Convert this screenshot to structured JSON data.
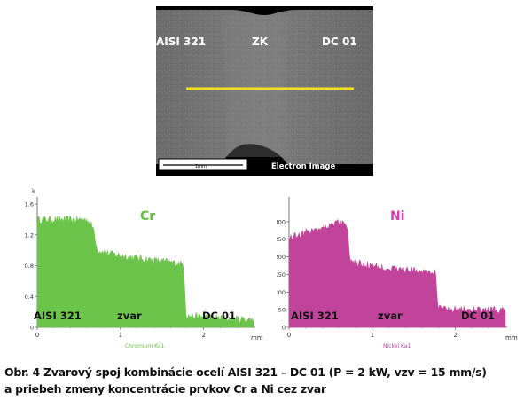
{
  "sem_image": {
    "label_left": "AISI 321",
    "label_center": "ZK",
    "label_right": "DC 01",
    "scale_bar_text": "1mm",
    "footer_label": "Electron Image",
    "line_color": "#f2e21c"
  },
  "chart_data": [
    {
      "type": "area",
      "title": "Cr",
      "color": "#6cc44a",
      "title_color": "#5fbf3c",
      "y_unit_label": "k",
      "xlabel": "Chromium Ka1",
      "x_unit": "mm",
      "xlim": [
        0,
        2.6
      ],
      "ylim": [
        0,
        1.6
      ],
      "yticks": [
        "0",
        "0.4",
        "0.8",
        "1.2",
        "1.6"
      ],
      "xticks": [
        "0",
        "1",
        "2"
      ],
      "ytick_values": [
        0,
        0.4,
        0.8,
        1.2,
        1.6
      ],
      "xtick_values": [
        0,
        1,
        2
      ],
      "profile": [
        {
          "x": 0.0,
          "y": 1.4
        },
        {
          "x": 0.6,
          "y": 1.4
        },
        {
          "x": 0.68,
          "y": 1.28
        },
        {
          "x": 0.72,
          "y": 1.0
        },
        {
          "x": 0.9,
          "y": 0.95
        },
        {
          "x": 1.2,
          "y": 0.9
        },
        {
          "x": 1.5,
          "y": 0.86
        },
        {
          "x": 1.76,
          "y": 0.82
        },
        {
          "x": 1.79,
          "y": 0.15
        },
        {
          "x": 2.2,
          "y": 0.12
        },
        {
          "x": 2.6,
          "y": 0.1
        }
      ],
      "region_labels": [
        "AISI 321",
        "zvar",
        "DC 01"
      ]
    },
    {
      "type": "area",
      "title": "Ni",
      "color": "#c2449a",
      "title_color": "#d63fb0",
      "y_unit_label": "",
      "xlabel": "Nickel Ka1",
      "x_unit": "mm",
      "xlim": [
        0,
        2.6
      ],
      "ylim": [
        0,
        350
      ],
      "yticks": [
        "0",
        "50",
        "100",
        "150",
        "200",
        "250",
        "300"
      ],
      "xticks": [
        "0",
        "1",
        "2"
      ],
      "ytick_values": [
        0,
        50,
        100,
        150,
        200,
        250,
        300
      ],
      "xtick_values": [
        0,
        1,
        2
      ],
      "profile": [
        {
          "x": 0.0,
          "y": 255
        },
        {
          "x": 0.6,
          "y": 300
        },
        {
          "x": 0.7,
          "y": 290
        },
        {
          "x": 0.73,
          "y": 185
        },
        {
          "x": 1.0,
          "y": 175
        },
        {
          "x": 1.3,
          "y": 165
        },
        {
          "x": 1.6,
          "y": 160
        },
        {
          "x": 1.76,
          "y": 155
        },
        {
          "x": 1.79,
          "y": 55
        },
        {
          "x": 2.2,
          "y": 50
        },
        {
          "x": 2.6,
          "y": 48
        }
      ],
      "region_labels": [
        "AISI 321",
        "zvar",
        "DC 01"
      ]
    }
  ],
  "caption": {
    "line1": "Obr. 4 Zvarový spoj kombinácie ocelí AISI 321 – DC 01 (P = 2 kW, vzv = 15 mm/s)",
    "line2": "a priebeh zmeny koncentrácie prvkov Cr a Ni cez zvar"
  }
}
